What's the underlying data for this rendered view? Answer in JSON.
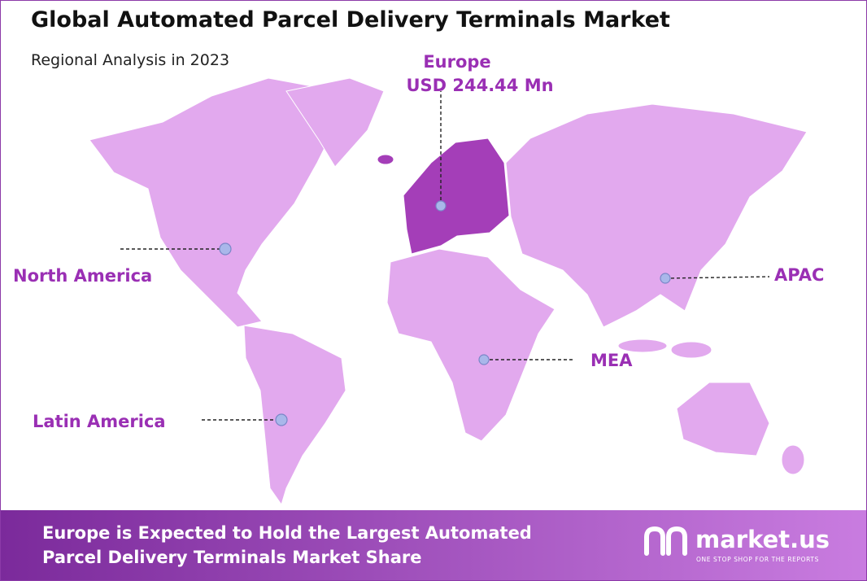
{
  "header": {
    "title": "Global Automated Parcel Delivery Terminals Market",
    "subtitle": "Regional Analysis in 2023"
  },
  "regions": [
    {
      "name": "Europe",
      "value": "USD 244.44 Mn"
    },
    {
      "name": "North America"
    },
    {
      "name": "APAC"
    },
    {
      "name": "MEA"
    },
    {
      "name": "Latin America"
    }
  ],
  "footer": {
    "headline": [
      "Europe is Expected to Hold the Largest Automated",
      "Parcel Delivery Terminals Market Share"
    ],
    "brand": "market.us",
    "tagline": "ONE STOP SHOP FOR THE REPORTS"
  }
}
